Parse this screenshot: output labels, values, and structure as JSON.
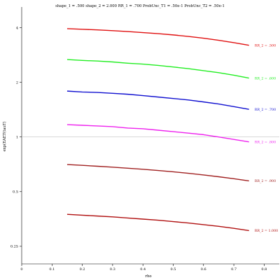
{
  "chart_data": {
    "type": "line",
    "title": "shape_1 = .500  shape_2 = 2.000  RR_1 = .700  ProbUnc_T1 = .50e-1  ProbUnc_T2 = .50e-1",
    "xlabel": "rho",
    "ylabel": "exp(EAET(tauT)",
    "xlim": [
      0,
      0.85
    ],
    "ylim": [
      0.2,
      5.2
    ],
    "y_scale": "log",
    "x_ticks": [
      "0",
      "0.1",
      "0.2",
      "0.3",
      "0.4",
      "0.5",
      "0.6",
      "0.7",
      "0.8"
    ],
    "x_tick_values": [
      0,
      0.1,
      0.2,
      0.3,
      0.4,
      0.5,
      0.6,
      0.7,
      0.8
    ],
    "y_ticks": [
      "0.25",
      "0.5",
      "1",
      "2",
      "4"
    ],
    "y_tick_values": [
      0.25,
      0.5,
      1,
      2,
      4
    ],
    "reference_line": {
      "y": 1,
      "color": "#c0c0c0"
    },
    "grid": false,
    "x": [
      0.15,
      0.2,
      0.25,
      0.3,
      0.35,
      0.4,
      0.45,
      0.5,
      0.55,
      0.6,
      0.65,
      0.7,
      0.75
    ],
    "series": [
      {
        "name": "RR_2 = .500",
        "color": "#e01010",
        "values": [
          3.95,
          3.92,
          3.89,
          3.85,
          3.81,
          3.76,
          3.71,
          3.65,
          3.58,
          3.5,
          3.41,
          3.31,
          3.2
        ]
      },
      {
        "name": "RR_2 = .600",
        "color": "#22ee22",
        "values": [
          2.67,
          2.64,
          2.62,
          2.59,
          2.55,
          2.52,
          2.48,
          2.43,
          2.38,
          2.32,
          2.26,
          2.19,
          2.11
        ]
      },
      {
        "name": "RR_2 = .700",
        "color": "#1010d0",
        "values": [
          1.79,
          1.77,
          1.76,
          1.74,
          1.72,
          1.69,
          1.66,
          1.63,
          1.6,
          1.56,
          1.52,
          1.47,
          1.42
        ]
      },
      {
        "name": "RR_2 = .800",
        "color": "#ee22ee",
        "values": [
          1.17,
          1.16,
          1.15,
          1.14,
          1.12,
          1.11,
          1.09,
          1.07,
          1.05,
          1.03,
          1.0,
          0.97,
          0.94
        ]
      },
      {
        "name": "RR_2 = .900",
        "color": "#a02020",
        "values": [
          0.705,
          0.698,
          0.69,
          0.682,
          0.673,
          0.664,
          0.654,
          0.643,
          0.631,
          0.618,
          0.604,
          0.589,
          0.573
        ]
      },
      {
        "name": "RR_2 = 1.000",
        "color": "#b01010",
        "values": [
          0.375,
          0.371,
          0.367,
          0.363,
          0.358,
          0.353,
          0.348,
          0.342,
          0.336,
          0.329,
          0.322,
          0.314,
          0.305
        ]
      }
    ]
  }
}
